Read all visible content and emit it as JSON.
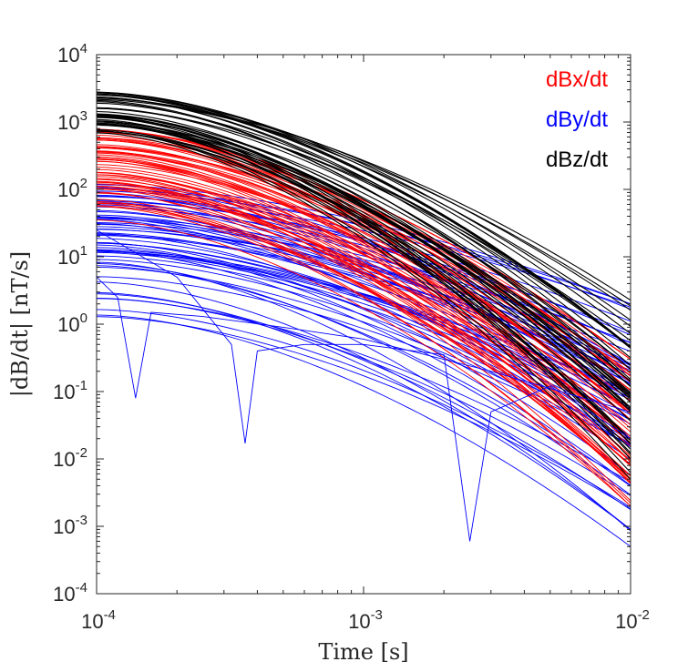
{
  "chart_data": {
    "type": "line",
    "title": "",
    "xlabel": "Time [s]",
    "ylabel": "|dB/dt| [nT/s]",
    "xscale": "log",
    "yscale": "log",
    "xlim": [
      0.0001,
      0.01
    ],
    "ylim": [
      0.0001,
      10000
    ],
    "x_ticks": [
      {
        "base": "10",
        "exp": "-4"
      },
      {
        "base": "10",
        "exp": "-3"
      },
      {
        "base": "10",
        "exp": "-2"
      }
    ],
    "y_ticks": [
      {
        "base": "10",
        "exp": "-4"
      },
      {
        "base": "10",
        "exp": "-3"
      },
      {
        "base": "10",
        "exp": "-2"
      },
      {
        "base": "10",
        "exp": "-1"
      },
      {
        "base": "10",
        "exp": "0"
      },
      {
        "base": "10",
        "exp": "1"
      },
      {
        "base": "10",
        "exp": "2"
      },
      {
        "base": "10",
        "exp": "3"
      },
      {
        "base": "10",
        "exp": "4"
      }
    ],
    "grid": false,
    "legend_position": "top-right",
    "series": [
      {
        "name": "dBx/dt",
        "color": "#ff0000",
        "count": 60,
        "value_range_at_1e-4": [
          30,
          800
        ],
        "value_range_at_1e-2": [
          0.002,
          0.3
        ]
      },
      {
        "name": "dBy/dt",
        "color": "#0000ff",
        "count": 60,
        "value_range_at_1e-4": [
          1,
          120
        ],
        "value_range_at_1e-2": [
          0.0005,
          2
        ]
      },
      {
        "name": "dBz/dt",
        "color": "#000000",
        "count": 45,
        "value_range_at_1e-4": [
          400,
          3000
        ],
        "value_range_at_1e-2": [
          0.005,
          2.5
        ]
      }
    ],
    "example_dBy_with_sign_changes": [
      {
        "x": [
          0.0001,
          0.00012,
          0.00014,
          0.00016,
          0.00025,
          0.0005,
          0.001,
          0.003,
          0.01
        ],
        "y": [
          5,
          2.5,
          0.08,
          1.5,
          1.3,
          0.9,
          0.6,
          0.2,
          0.05
        ]
      },
      {
        "x": [
          0.0001,
          0.0002,
          0.00032,
          0.00036,
          0.0004,
          0.0006,
          0.001,
          0.002,
          0.0025,
          0.003,
          0.005,
          0.01
        ],
        "y": [
          25,
          5,
          0.5,
          0.017,
          0.4,
          0.5,
          0.5,
          0.35,
          0.0006,
          0.05,
          0.12,
          0.02
        ]
      }
    ]
  }
}
